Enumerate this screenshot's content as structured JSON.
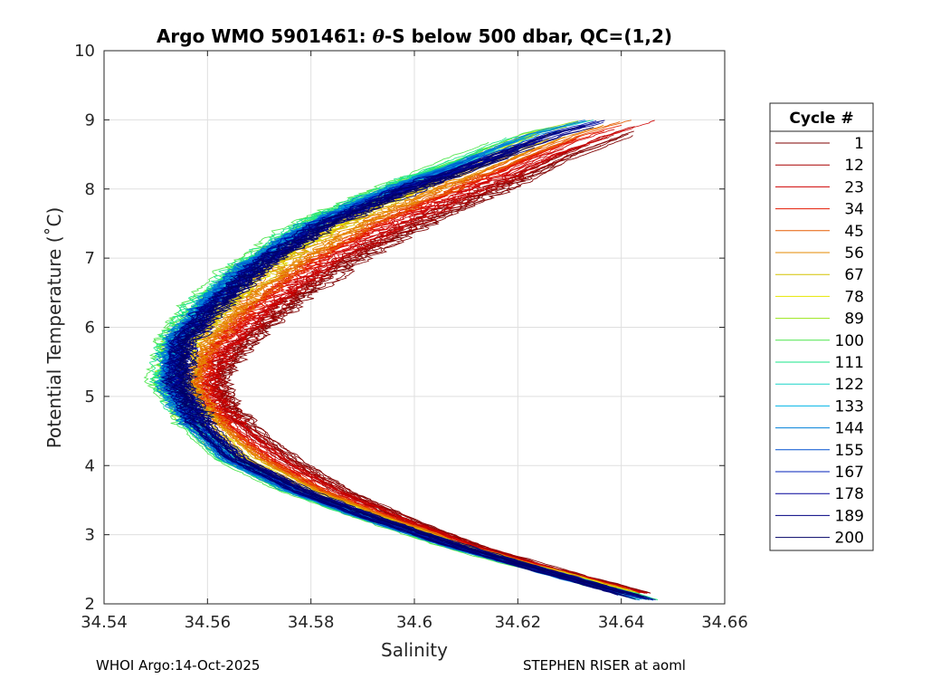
{
  "chart_data": {
    "type": "line",
    "title_prefix": "Argo WMO 5901461: ",
    "title_theta": "θ",
    "title_suffix": "-S below 500 dbar,  QC=(1,2)",
    "xlabel": "Salinity",
    "ylabel": "Potential Temperature (˚C)",
    "xlim": [
      34.54,
      34.66
    ],
    "ylim": [
      2,
      10
    ],
    "xticks": [
      "34.54",
      "34.56",
      "34.58",
      "34.6",
      "34.62",
      "34.64",
      "34.66"
    ],
    "yticks": [
      "2",
      "3",
      "4",
      "5",
      "6",
      "7",
      "8",
      "9",
      "10"
    ],
    "grid": true,
    "legend_title": "Cycle #",
    "legend_position": "outside-right",
    "legend": [
      {
        "label": "1",
        "color": "#7f0000"
      },
      {
        "label": "12",
        "color": "#a80000"
      },
      {
        "label": "23",
        "color": "#cf0000"
      },
      {
        "label": "34",
        "color": "#e51a00"
      },
      {
        "label": "45",
        "color": "#e65c00"
      },
      {
        "label": "56",
        "color": "#e68a00"
      },
      {
        "label": "67",
        "color": "#d4c200"
      },
      {
        "label": "78",
        "color": "#e6e600"
      },
      {
        "label": "89",
        "color": "#9ae61a"
      },
      {
        "label": "100",
        "color": "#4ce64c"
      },
      {
        "label": "111",
        "color": "#1ae68a"
      },
      {
        "label": "122",
        "color": "#1ad4c8"
      },
      {
        "label": "133",
        "color": "#00b4e6"
      },
      {
        "label": "144",
        "color": "#0080d8"
      },
      {
        "label": "155",
        "color": "#0050d0"
      },
      {
        "label": "167",
        "color": "#0020b8"
      },
      {
        "label": "178",
        "color": "#000098"
      },
      {
        "label": "189",
        "color": "#000080"
      },
      {
        "label": "200",
        "color": "#000066"
      }
    ],
    "series_profiles": [
      {
        "group": "early-cycles",
        "color": "#b00000",
        "points": [
          [
            34.645,
            2.15
          ],
          [
            34.625,
            2.55
          ],
          [
            34.612,
            2.85
          ],
          [
            34.6,
            3.2
          ],
          [
            34.588,
            3.6
          ],
          [
            34.578,
            4.05
          ],
          [
            34.57,
            4.5
          ],
          [
            34.565,
            4.85
          ],
          [
            34.563,
            5.2
          ],
          [
            34.566,
            5.6
          ],
          [
            34.572,
            6.0
          ],
          [
            34.58,
            6.5
          ],
          [
            34.59,
            7.0
          ],
          [
            34.603,
            7.5
          ],
          [
            34.618,
            8.0
          ],
          [
            34.632,
            8.5
          ],
          [
            34.65,
            9.0
          ]
        ]
      },
      {
        "group": "mid-cycles",
        "color": "#1ae68a",
        "points": [
          [
            34.648,
            2.0
          ],
          [
            34.626,
            2.45
          ],
          [
            34.608,
            2.8
          ],
          [
            34.59,
            3.25
          ],
          [
            34.575,
            3.65
          ],
          [
            34.563,
            4.1
          ],
          [
            34.556,
            4.6
          ],
          [
            34.551,
            5.2
          ],
          [
            34.552,
            5.8
          ],
          [
            34.557,
            6.3
          ],
          [
            34.566,
            6.9
          ],
          [
            34.578,
            7.5
          ],
          [
            34.593,
            8.0
          ],
          [
            34.607,
            8.4
          ],
          [
            34.62,
            8.8
          ],
          [
            34.632,
            9.0
          ]
        ]
      },
      {
        "group": "late-cycles",
        "color": "#00008c",
        "points": [
          [
            34.645,
            2.05
          ],
          [
            34.624,
            2.5
          ],
          [
            34.608,
            2.85
          ],
          [
            34.592,
            3.25
          ],
          [
            34.578,
            3.65
          ],
          [
            34.566,
            4.1
          ],
          [
            34.559,
            4.6
          ],
          [
            34.555,
            5.2
          ],
          [
            34.556,
            5.8
          ],
          [
            34.562,
            6.3
          ],
          [
            34.571,
            6.9
          ],
          [
            34.584,
            7.5
          ],
          [
            34.6,
            8.0
          ],
          [
            34.615,
            8.4
          ],
          [
            34.63,
            8.8
          ],
          [
            34.64,
            9.0
          ]
        ]
      }
    ]
  },
  "footer": {
    "left": "WHOI Argo:14-Oct-2025",
    "right": "STEPHEN RISER at aoml"
  }
}
